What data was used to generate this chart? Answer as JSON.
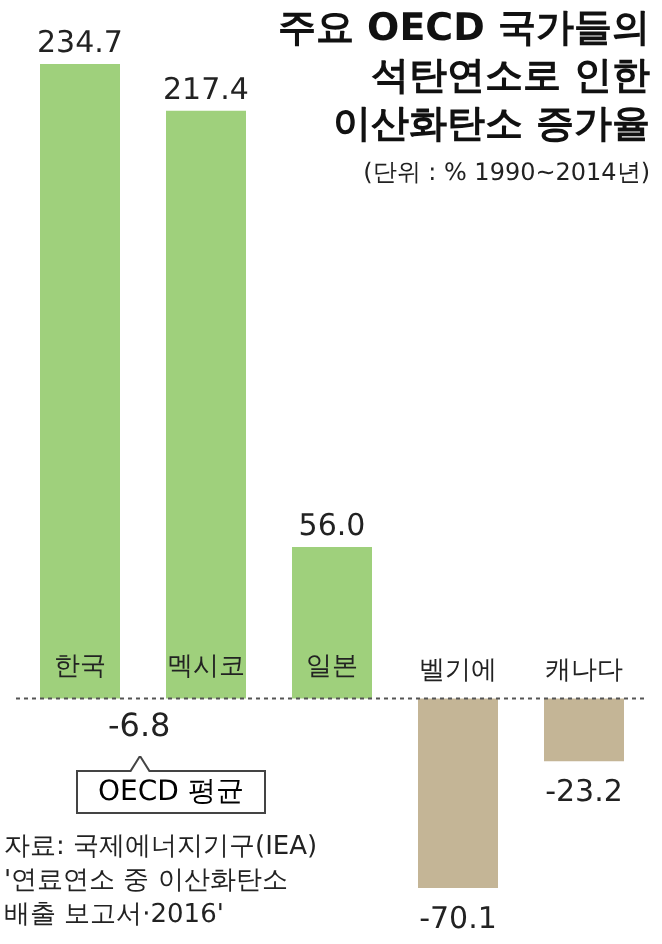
{
  "chart_data": {
    "type": "bar",
    "title": "주요 OECD 국가들의\n석탄연소로 인한\n이산화탄소 증가율",
    "subtitle": "(단위 : % 1990~2014년)",
    "categories": [
      "한국",
      "멕시코",
      "일본",
      "벨기에",
      "캐나다"
    ],
    "values": [
      234.7,
      217.4,
      56.0,
      -70.1,
      -23.2
    ],
    "value_labels": [
      "234.7",
      "217.4",
      "56.0",
      "-70.1",
      "-23.2"
    ],
    "colors": [
      "#9fd07c",
      "#9fd07c",
      "#9fd07c",
      "#c4b596",
      "#c4b596"
    ],
    "ref_lines": [
      {
        "axis": "y",
        "value": 0,
        "color": "#555555",
        "line_style": "dotted"
      }
    ],
    "annotations": [
      "-6.8",
      "OECD 평균",
      "자료: 국제에너지기구(IEA)\n'연료연소 중 이산화탄소\n배출 보고서·2016'"
    ]
  }
}
